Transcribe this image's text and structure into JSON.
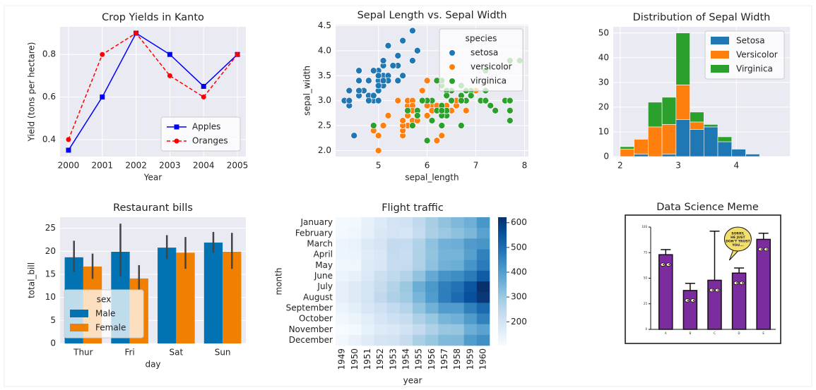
{
  "chart_data": [
    {
      "type": "line",
      "title": "Crop Yields in Kanto",
      "xlabel": "Year",
      "ylabel": "Yield (tons per hectare)",
      "x": [
        2000,
        2001,
        2002,
        2003,
        2004,
        2005
      ],
      "series": [
        {
          "name": "Apples",
          "color": "#0000ff",
          "marker": "square",
          "linestyle": "solid",
          "values": [
            0.35,
            0.6,
            0.9,
            0.8,
            0.65,
            0.8
          ]
        },
        {
          "name": "Oranges",
          "color": "#ff0000",
          "marker": "circle",
          "linestyle": "dashed",
          "values": [
            0.4,
            0.8,
            0.9,
            0.7,
            0.6,
            0.8
          ]
        }
      ],
      "xlim": [
        1999.75,
        2005.25
      ],
      "xticks": [
        2000,
        2001,
        2002,
        2003,
        2004,
        2005
      ],
      "ylim": [
        0.32,
        0.93
      ],
      "yticks": [
        0.4,
        0.6,
        0.8
      ],
      "grid": true,
      "legend": "lower right"
    },
    {
      "type": "scatter",
      "title": "Sepal Length vs. Sepal Width",
      "xlabel": "sepal_length",
      "ylabel": "sepal_width",
      "legend_title": "species",
      "series": [
        {
          "name": "setosa",
          "color": "#1f77b4",
          "x": [
            5.1,
            4.9,
            4.7,
            4.6,
            5.0,
            5.4,
            4.6,
            5.0,
            4.4,
            4.9,
            5.4,
            4.8,
            4.8,
            4.3,
            5.8,
            5.7,
            5.4,
            5.1,
            5.7,
            5.1,
            5.4,
            5.1,
            4.6,
            5.1,
            4.8,
            5.0,
            5.0,
            5.2,
            5.2,
            4.7,
            4.8,
            5.4,
            5.2,
            5.5,
            4.9,
            5.0,
            5.5,
            4.9,
            4.4,
            5.1,
            5.0,
            4.5,
            4.4,
            5.0,
            5.1,
            4.8,
            5.1,
            4.6,
            5.3,
            5.0
          ],
          "values": [
            3.5,
            3.0,
            3.2,
            3.1,
            3.6,
            3.9,
            3.4,
            3.4,
            2.9,
            3.1,
            3.7,
            3.4,
            3.0,
            3.0,
            4.0,
            4.4,
            3.9,
            3.5,
            3.8,
            3.8,
            3.4,
            3.7,
            3.6,
            3.3,
            3.4,
            3.0,
            3.4,
            3.5,
            3.4,
            3.2,
            3.1,
            3.4,
            4.1,
            4.2,
            3.1,
            3.2,
            3.5,
            3.6,
            3.0,
            3.4,
            3.5,
            2.3,
            3.2,
            3.5,
            3.8,
            3.0,
            3.8,
            3.2,
            3.7,
            3.3
          ]
        },
        {
          "name": "versicolor",
          "color": "#ff7f0e",
          "x": [
            7.0,
            6.4,
            6.9,
            5.5,
            6.5,
            5.7,
            6.3,
            4.9,
            6.6,
            5.2,
            5.0,
            5.9,
            6.0,
            6.1,
            5.6,
            6.7,
            5.6,
            5.8,
            6.2,
            5.6,
            5.9,
            6.1,
            6.3,
            6.1,
            6.4,
            6.6,
            6.8,
            6.7,
            6.0,
            5.7,
            5.5,
            5.5,
            5.8,
            6.0,
            5.4,
            6.0,
            6.7,
            6.3,
            5.6,
            5.5,
            5.5,
            6.1,
            5.8,
            5.0,
            5.6,
            5.7,
            5.7,
            6.2,
            5.1,
            5.7
          ],
          "values": [
            3.2,
            3.2,
            3.1,
            2.3,
            2.8,
            2.8,
            3.3,
            2.4,
            2.9,
            2.7,
            2.0,
            3.0,
            2.2,
            2.9,
            2.9,
            3.1,
            3.0,
            2.7,
            2.2,
            2.5,
            3.2,
            2.8,
            2.5,
            2.8,
            2.9,
            3.0,
            2.8,
            3.0,
            2.9,
            2.6,
            2.4,
            2.4,
            2.7,
            2.7,
            3.0,
            3.4,
            3.1,
            2.3,
            3.0,
            2.5,
            2.6,
            3.0,
            2.6,
            2.3,
            2.7,
            3.0,
            2.9,
            2.9,
            2.5,
            2.8
          ]
        },
        {
          "name": "virginica",
          "color": "#2ca02c",
          "x": [
            6.3,
            5.8,
            7.1,
            6.3,
            6.5,
            7.6,
            4.9,
            7.3,
            6.7,
            7.2,
            6.5,
            6.4,
            6.8,
            5.7,
            5.8,
            6.4,
            6.5,
            7.7,
            7.7,
            6.0,
            6.9,
            5.6,
            7.7,
            6.3,
            6.7,
            7.2,
            6.2,
            6.1,
            6.4,
            7.2,
            7.4,
            7.9,
            6.4,
            6.3,
            6.1,
            7.7,
            6.3,
            6.4,
            6.0,
            6.9,
            6.7,
            6.9,
            5.8,
            6.8,
            6.7,
            6.7,
            6.3,
            6.5,
            6.2,
            5.9
          ],
          "values": [
            3.3,
            2.7,
            3.0,
            2.9,
            3.0,
            3.0,
            2.5,
            2.9,
            2.5,
            3.6,
            3.2,
            2.7,
            3.0,
            2.5,
            2.8,
            3.2,
            3.0,
            3.8,
            2.6,
            2.2,
            3.2,
            2.8,
            2.8,
            2.7,
            3.3,
            3.2,
            2.8,
            3.0,
            2.8,
            3.0,
            2.8,
            3.8,
            2.8,
            2.8,
            2.6,
            3.0,
            3.4,
            3.1,
            3.0,
            3.1,
            3.1,
            3.1,
            2.7,
            3.2,
            3.3,
            3.0,
            2.5,
            3.0,
            3.4,
            3.0
          ]
        }
      ],
      "xlim": [
        4.12,
        8.08
      ],
      "xticks": [
        5,
        6,
        7,
        8
      ],
      "ylim": [
        1.88,
        4.52
      ],
      "yticks": [
        {
          "value": 2,
          "label": "2.0"
        },
        2.5,
        {
          "value": 3,
          "label": "3.0"
        },
        3.5,
        {
          "value": 4,
          "label": "4.0"
        },
        4.5
      ],
      "grid": true,
      "legend": "upper right"
    },
    {
      "type": "histogram",
      "title": "Distribution of Sepal Width",
      "stacked": true,
      "bins": [
        2.0,
        2.24,
        2.48,
        2.72,
        2.96,
        3.2,
        3.44,
        3.68,
        3.92,
        4.16,
        4.4
      ],
      "series": [
        {
          "name": "Setosa",
          "color": "#1f77b4",
          "values": [
            0,
            1,
            0,
            1,
            15,
            11,
            12,
            6,
            3,
            1
          ]
        },
        {
          "name": "Versicolor",
          "color": "#ff7f0e",
          "values": [
            3,
            6,
            12,
            12,
            14,
            3,
            0,
            0,
            0,
            0
          ]
        },
        {
          "name": "Virginica",
          "color": "#2ca02c",
          "values": [
            1,
            0,
            10,
            11,
            21,
            4,
            1,
            2,
            0,
            0
          ]
        }
      ],
      "xlim": [
        1.88,
        4.92
      ],
      "xticks": [
        2,
        3,
        4
      ],
      "ylim": [
        0,
        52.5
      ],
      "yticks": [
        0,
        10,
        20,
        30,
        40,
        50
      ],
      "grid": true,
      "legend": "upper right"
    },
    {
      "type": "grouped_bar",
      "title": "Restaurant bills",
      "xlabel": "day",
      "ylabel": "total_bill",
      "legend_title": "sex",
      "categories": [
        "Thur",
        "Fri",
        "Sat",
        "Sun"
      ],
      "series": [
        {
          "name": "Male",
          "color": "#0173b2",
          "values": [
            18.7,
            19.9,
            20.8,
            21.9
          ],
          "ci": [
            [
              15.5,
              22.3
            ],
            [
              14.5,
              26.0
            ],
            [
              18.3,
              23.5
            ],
            [
              19.7,
              24.2
            ]
          ]
        },
        {
          "name": "Female",
          "color": "#f28000",
          "values": [
            16.7,
            14.1,
            19.7,
            19.9
          ],
          "ci": [
            [
              14.0,
              19.5
            ],
            [
              11.5,
              17.0
            ],
            [
              16.2,
              23.1
            ],
            [
              16.2,
              24.0
            ]
          ]
        }
      ],
      "ylim": [
        0,
        27.4
      ],
      "yticks": [
        0,
        5,
        10,
        15,
        20,
        25
      ],
      "grid": true,
      "legend": "lower left"
    },
    {
      "type": "heatmap",
      "title": "Flight traffic",
      "xlabel": "year",
      "ylabel": "month",
      "colormap": "Blues",
      "x": [
        "1949",
        "1950",
        "1951",
        "1952",
        "1953",
        "1954",
        "1955",
        "1956",
        "1957",
        "1958",
        "1959",
        "1960"
      ],
      "y": [
        "January",
        "February",
        "March",
        "April",
        "May",
        "June",
        "July",
        "August",
        "September",
        "October",
        "November",
        "December"
      ],
      "values": [
        [
          112,
          115,
          145,
          171,
          196,
          204,
          242,
          284,
          315,
          340,
          360,
          417
        ],
        [
          118,
          126,
          150,
          180,
          196,
          188,
          233,
          277,
          301,
          318,
          342,
          391
        ],
        [
          132,
          141,
          178,
          193,
          236,
          235,
          267,
          317,
          356,
          362,
          406,
          419
        ],
        [
          129,
          135,
          163,
          181,
          235,
          227,
          269,
          313,
          348,
          348,
          396,
          461
        ],
        [
          121,
          125,
          172,
          183,
          229,
          234,
          270,
          318,
          355,
          363,
          420,
          472
        ],
        [
          135,
          149,
          178,
          218,
          243,
          264,
          315,
          374,
          422,
          435,
          472,
          535
        ],
        [
          148,
          170,
          199,
          230,
          264,
          302,
          364,
          413,
          465,
          491,
          548,
          622
        ],
        [
          148,
          170,
          199,
          242,
          272,
          293,
          347,
          405,
          467,
          505,
          559,
          606
        ],
        [
          136,
          158,
          184,
          209,
          237,
          259,
          312,
          355,
          404,
          404,
          463,
          508
        ],
        [
          119,
          133,
          162,
          191,
          211,
          229,
          274,
          306,
          347,
          359,
          407,
          461
        ],
        [
          104,
          114,
          146,
          172,
          180,
          203,
          237,
          271,
          305,
          310,
          362,
          390
        ],
        [
          118,
          140,
          166,
          194,
          201,
          229,
          278,
          306,
          336,
          337,
          405,
          432
        ]
      ],
      "clim": [
        104,
        622
      ],
      "cticks": [
        200,
        300,
        400,
        500,
        600
      ]
    },
    {
      "type": "bar",
      "title": "Data Science Meme",
      "color": "#7b2c9e",
      "categories": [
        "A",
        "B",
        "C",
        "D",
        "E"
      ],
      "values": [
        73,
        38,
        48,
        55,
        88
      ],
      "errors": [
        5,
        7,
        48,
        5,
        6
      ],
      "ylim": [
        0,
        100
      ],
      "yticks": [
        0,
        25,
        50,
        75,
        100
      ],
      "annotation": [
        "SORRY,",
        "HE JUST",
        "DON'T TRUST",
        "YOU..."
      ]
    }
  ]
}
